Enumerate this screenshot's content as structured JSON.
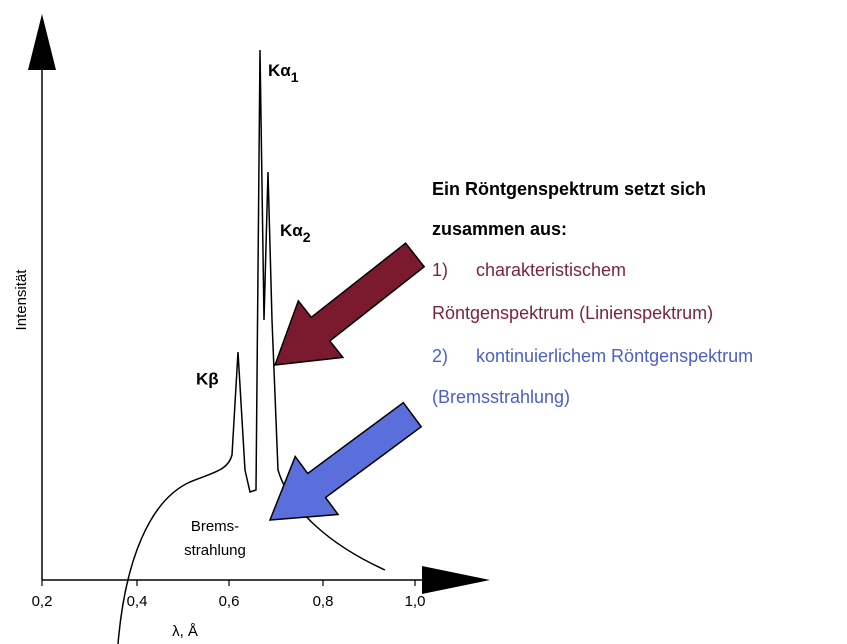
{
  "axis": {
    "y_label": "Intensität",
    "x_label": "λ, Å",
    "x_ticks": [
      "0,2",
      "0,4",
      "0,6",
      "0,8",
      "1,0"
    ]
  },
  "peaks": [
    {
      "base": "Kα",
      "sub": "1"
    },
    {
      "base": "Kα",
      "sub": "2"
    },
    {
      "base": "Kβ"
    }
  ],
  "curve_label": [
    "Brems-",
    "strahlung"
  ],
  "text": {
    "heading": [
      "Ein Röntgenspektrum setzt sich",
      "zusammen aus:"
    ],
    "item1": {
      "number": "1)",
      "lines": [
        "charakteristischem",
        "Röntgenspektrum (Linienspektrum)"
      ]
    },
    "item2": {
      "number": "2)",
      "lines": [
        "kontinuierlichem Röntgenspektrum",
        "(Bremsstrahlung)"
      ]
    }
  }
}
